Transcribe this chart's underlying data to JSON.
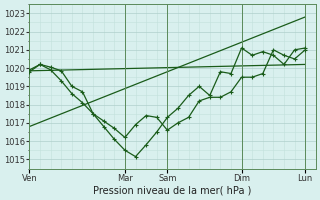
{
  "xlabel": "Pression niveau de la mer( hPa )",
  "ylim": [
    1014.5,
    1023.5
  ],
  "yticks": [
    1015,
    1016,
    1017,
    1018,
    1019,
    1020,
    1021,
    1022,
    1023
  ],
  "bg_color": "#d9f0ee",
  "grid_color_minor": "#c2e0dc",
  "grid_color_major": "#b0d0cc",
  "line_color": "#1a5c1a",
  "xtick_labels": [
    "Ven",
    "Mar",
    "Sam",
    "Dim",
    "Lun"
  ],
  "xtick_positions": [
    0,
    9,
    13,
    20,
    26
  ],
  "xlim": [
    0,
    27
  ],
  "line1_x": [
    0,
    1,
    2,
    3,
    4,
    5,
    6,
    7,
    8,
    9,
    10,
    11,
    12,
    13,
    14,
    15,
    16,
    17,
    18,
    19,
    20,
    21,
    22,
    23,
    24,
    25,
    26
  ],
  "line1_y": [
    1019.8,
    1020.2,
    1019.9,
    1019.3,
    1018.6,
    1018.1,
    1017.5,
    1017.1,
    1016.7,
    1016.2,
    1016.9,
    1017.4,
    1017.3,
    1016.6,
    1017.0,
    1017.3,
    1018.2,
    1018.4,
    1018.4,
    1018.7,
    1019.5,
    1019.5,
    1019.7,
    1021.0,
    1020.7,
    1020.5,
    1021.0
  ],
  "line2_x": [
    0,
    1,
    2,
    3,
    4,
    5,
    6,
    7,
    8,
    9,
    10,
    11,
    12,
    13,
    14,
    15,
    16,
    17,
    18,
    19,
    20,
    21,
    22,
    23,
    24,
    25,
    26
  ],
  "line2_y": [
    1019.9,
    1020.2,
    1020.05,
    1019.85,
    1019.0,
    1018.7,
    1017.5,
    1016.8,
    1016.1,
    1015.5,
    1015.15,
    1015.8,
    1016.5,
    1017.3,
    1017.8,
    1018.5,
    1019.0,
    1018.5,
    1019.8,
    1019.7,
    1021.1,
    1020.7,
    1020.9,
    1020.7,
    1020.2,
    1021.0,
    1021.1
  ],
  "line3_x": [
    0,
    26
  ],
  "line3_y": [
    1019.85,
    1020.2
  ],
  "line4_x": [
    0,
    26
  ],
  "line4_y": [
    1016.8,
    1022.8
  ],
  "sep_positions": [
    0,
    9,
    13,
    20,
    26
  ],
  "xlabel_fontsize": 7,
  "tick_fontsize": 6
}
